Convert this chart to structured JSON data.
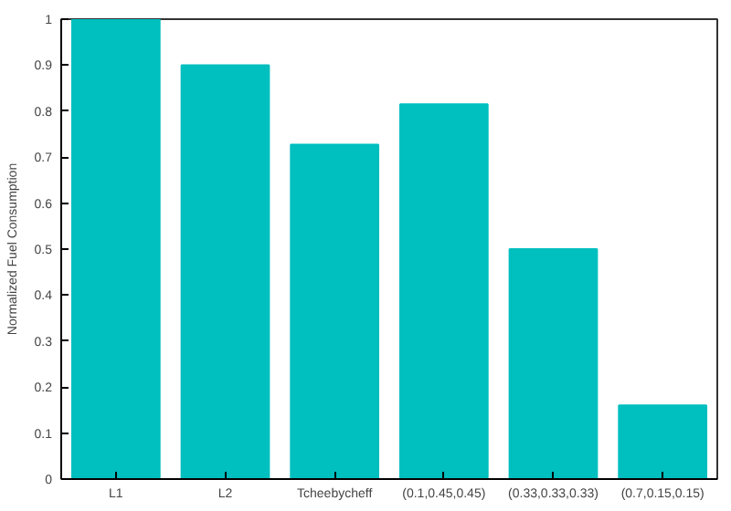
{
  "chart_data": {
    "type": "bar",
    "ylabel": "Normalized Fuel Consumption",
    "categories": [
      "L1",
      "L2",
      "Tcheebycheff",
      "(0.1,0.45,0.45)",
      "(0.33,0.33,0.33)",
      "(0.7,0.15,0.15)"
    ],
    "values": [
      1.0,
      0.9,
      0.727,
      0.815,
      0.5,
      0.16
    ],
    "color": "#00bfbf",
    "ylim": [
      0,
      1
    ],
    "yticks": [
      0,
      0.1,
      0.2,
      0.3,
      0.4,
      0.5,
      0.6,
      0.7,
      0.8,
      0.9,
      1
    ],
    "grid": false
  }
}
